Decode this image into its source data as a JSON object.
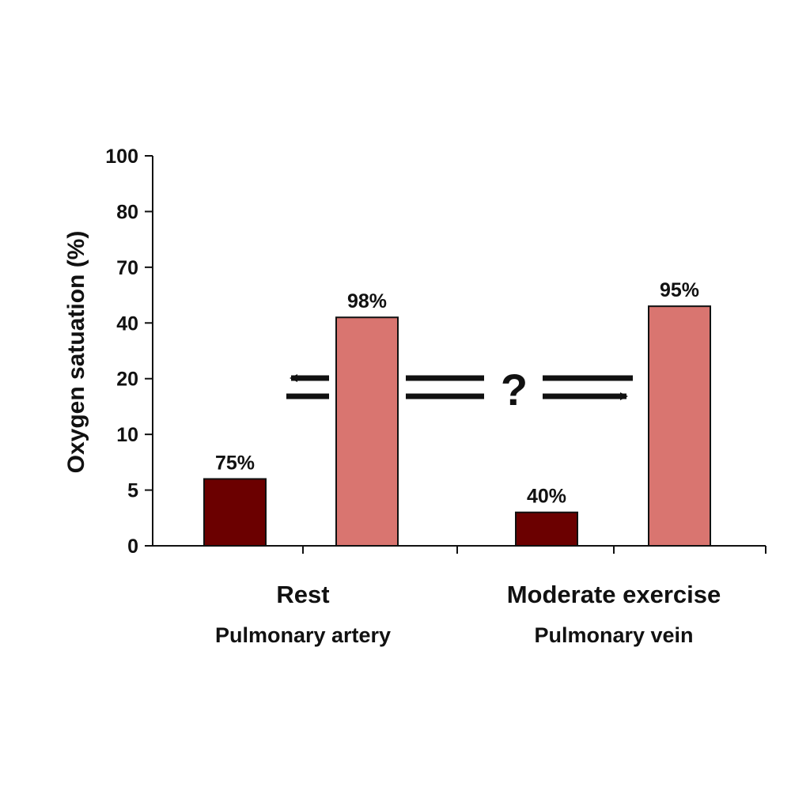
{
  "chart_data": {
    "type": "bar",
    "ylabel": "Oxygen satuation (%)",
    "y_ticks": [
      "100",
      "80",
      "70",
      "40",
      "20",
      "10",
      "5",
      "0"
    ],
    "categories": [
      "Rest",
      "Moderate exercise"
    ],
    "sub_labels": [
      "Pulmonary artery",
      "Pulmonary vein"
    ],
    "bars": [
      {
        "group": "Rest",
        "tick_position": 1.2,
        "label": "75%",
        "color": "#6b0000"
      },
      {
        "group": "Rest",
        "tick_position": 4.1,
        "label": "98%",
        "color": "#d97570"
      },
      {
        "group": "Moderate exercise",
        "tick_position": 0.6,
        "label": "40%",
        "color": "#6b0000"
      },
      {
        "group": "Moderate exercise",
        "tick_position": 4.3,
        "label": "95%",
        "color": "#d97570"
      }
    ],
    "annotation": "?",
    "grid": false,
    "legend": "none"
  }
}
